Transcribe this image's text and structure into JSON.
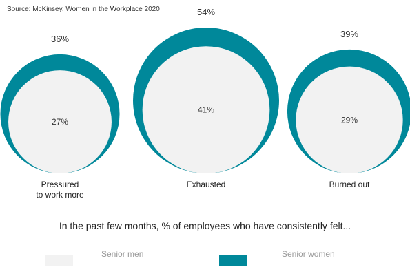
{
  "source": "Source: McKinsey, Women in the Workplace 2020",
  "subtitle": "In the past few months, % of employees who have consistently felt...",
  "legend": {
    "men_label": "Senior men",
    "women_label": "Senior women"
  },
  "colors": {
    "men": "#f2f2f2",
    "women": "#00889a"
  },
  "chart_data": {
    "type": "bubble",
    "title": "",
    "categories": [
      "Pressured\nto work more",
      "Exhausted",
      "Burned out"
    ],
    "series": [
      {
        "name": "Senior women",
        "values": [
          36,
          54,
          39
        ],
        "labels": [
          "36%",
          "54%",
          "39%"
        ]
      },
      {
        "name": "Senior men",
        "values": [
          27,
          41,
          29
        ],
        "labels": [
          "27%",
          "41%",
          "29%"
        ]
      }
    ],
    "unit": "%"
  }
}
